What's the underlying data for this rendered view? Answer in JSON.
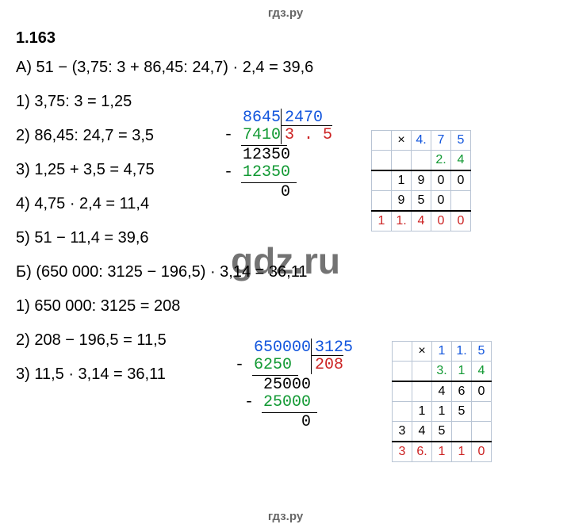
{
  "header": "гдз.ру",
  "footer": "гдз.ру",
  "watermark": "gdz.ru",
  "section": "1.163",
  "partA": {
    "main": "А) 51 − (3,75: 3 + 86,45: 24,7) · 2,4 = 39,6",
    "steps": [
      "1) 3,75: 3 = 1,25",
      "2) 86,45: 24,7 = 3,5",
      "3) 1,25 + 3,5 = 4,75",
      "4) 4,75 · 2,4 = 11,4",
      "5) 51 − 11,4 = 39,6"
    ],
    "longdiv": {
      "dividend": "8645",
      "divisor": "2470",
      "quotient": "3 . 5",
      "r1_sub": "7410",
      "r2": "12350",
      "r2_sub": "12350",
      "rem": "0"
    },
    "mult": {
      "type": "multiplication",
      "row1": [
        "",
        "×",
        "4.",
        "7",
        "5"
      ],
      "row2": [
        "",
        "",
        "",
        "2.",
        "4"
      ],
      "p1": [
        "",
        "1",
        "9",
        "0",
        "0"
      ],
      "p2": [
        "",
        "9",
        "5",
        "0",
        ""
      ],
      "res": [
        "1",
        "1.",
        "4",
        "0",
        "0"
      ],
      "colors": {
        "row1": [
          "",
          "black",
          "blue",
          "blue",
          "blue"
        ],
        "row2": [
          "",
          "",
          "",
          "green",
          "green"
        ],
        "p1": [
          "",
          "black",
          "black",
          "black",
          "black"
        ],
        "p2": [
          "",
          "black",
          "black",
          "black",
          ""
        ],
        "res": [
          "red",
          "red",
          "red",
          "red",
          "red"
        ]
      }
    }
  },
  "partB": {
    "main": "Б) (650 000: 3125 − 196,5) · 3,14 = 36,11",
    "steps": [
      "1) 650 000: 3125 = 208",
      "2) 208 − 196,5 = 11,5",
      "3) 11,5 · 3,14 = 36,11"
    ],
    "longdiv": {
      "dividend": "650000",
      "divisor": "3125",
      "quotient": "208",
      "r1_sub": "6250",
      "r2": "25000",
      "r2_sub": "25000",
      "rem": "0"
    },
    "mult": {
      "type": "multiplication",
      "row1": [
        "",
        "×",
        "1",
        "1.",
        "5"
      ],
      "row2": [
        "",
        "",
        "3.",
        "1",
        "4"
      ],
      "p1": [
        "",
        "",
        "4",
        "6",
        "0"
      ],
      "p2": [
        "",
        "1",
        "1",
        "5",
        ""
      ],
      "p3": [
        "3",
        "4",
        "5",
        "",
        ""
      ],
      "res": [
        "3",
        "6.",
        "1",
        "1",
        "0"
      ],
      "colors": {
        "row1": [
          "",
          "black",
          "blue",
          "blue",
          "blue"
        ],
        "row2": [
          "",
          "",
          "green",
          "green",
          "green"
        ],
        "p1": [
          "",
          "",
          "black",
          "black",
          "black"
        ],
        "p2": [
          "",
          "black",
          "black",
          "black",
          ""
        ],
        "p3": [
          "black",
          "black",
          "black",
          "",
          ""
        ],
        "res": [
          "red",
          "red",
          "red",
          "red",
          "red"
        ]
      }
    }
  }
}
